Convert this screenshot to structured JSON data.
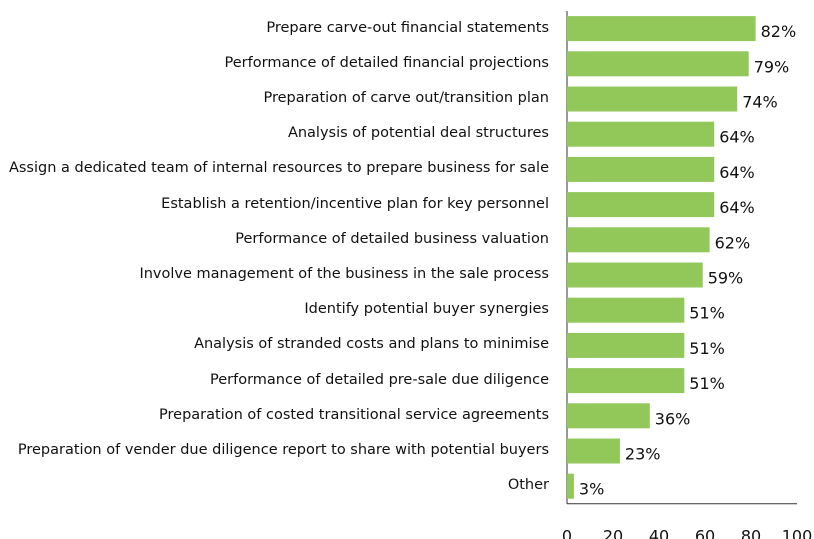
{
  "chart_data": {
    "type": "hbar",
    "categories": [
      "Prepare carve-out financial statements",
      "Performance of detailed financial projections",
      "Preparation of carve out/transition plan",
      "Analysis of potential deal structures",
      "Assign a dedicated team of internal resources to prepare business for sale",
      "Establish a retention/incentive plan for key personnel",
      "Performance of detailed business valuation",
      "Involve management of the business in the sale process",
      "Identify potential buyer synergies",
      "Analysis of stranded costs and plans to minimise",
      "Performance of detailed pre-sale due diligence",
      "Preparation of costed transitional service agreements",
      "Preparation of vender due diligence report to share with potential buyers",
      "Other"
    ],
    "values": [
      82,
      79,
      74,
      64,
      64,
      64,
      62,
      59,
      51,
      51,
      51,
      36,
      23,
      3
    ],
    "value_labels": [
      "82%",
      "79%",
      "74%",
      "64%",
      "64%",
      "64%",
      "62%",
      "59%",
      "51%",
      "51%",
      "51%",
      "36%",
      "23%",
      "3%"
    ],
    "color": "#92c85a",
    "xlim": [
      0,
      100
    ],
    "xticks": [
      0,
      20,
      40,
      60,
      80,
      100
    ]
  }
}
